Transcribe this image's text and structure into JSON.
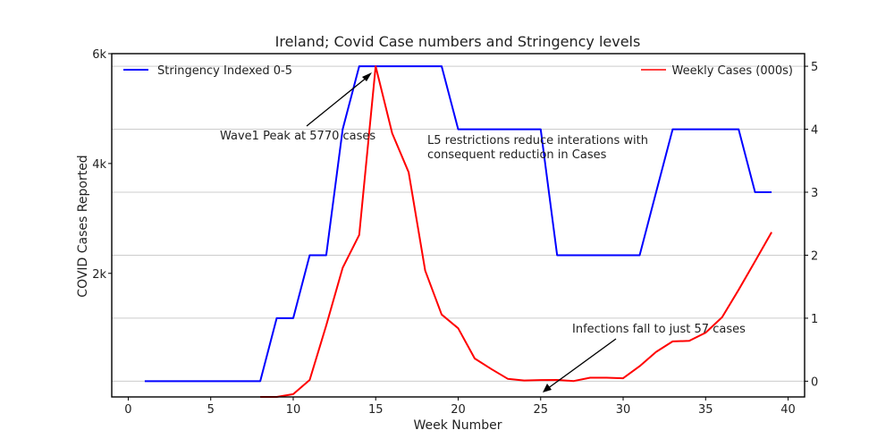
{
  "chart_data": {
    "type": "line",
    "title": "Ireland; Covid Case numbers and Stringency levels",
    "xlabel": "Week Number",
    "ylabel_left": "COVID Cases Reported",
    "xlim": [
      -1,
      41
    ],
    "ylim_left": [
      -0.25,
      6
    ],
    "ylim_right": [
      -0.25,
      5.2
    ],
    "grid": "horizontal lines at right-axis ticks",
    "x_ticks": [
      0,
      5,
      10,
      15,
      20,
      25,
      30,
      35,
      40
    ],
    "left_ticks": [
      {
        "value": 2,
        "label": "2k"
      },
      {
        "value": 4,
        "label": "4k"
      },
      {
        "value": 6,
        "label": "6k"
      }
    ],
    "right_ticks": [
      0,
      1,
      2,
      3,
      4,
      5
    ],
    "series": [
      {
        "name": "Stringency Indexed 0-5",
        "axis": "right",
        "color": "#0000ff",
        "x": [
          1,
          2,
          3,
          4,
          5,
          6,
          7,
          8,
          9,
          10,
          11,
          12,
          13,
          14,
          15,
          16,
          17,
          18,
          19,
          20,
          21,
          22,
          23,
          24,
          25,
          26,
          27,
          28,
          29,
          30,
          31,
          32,
          33,
          34,
          35,
          36,
          37,
          38,
          39
        ],
        "values": [
          0,
          0,
          0,
          0,
          0,
          0,
          0,
          0,
          1,
          1,
          2,
          2,
          4,
          5,
          5,
          5,
          5,
          5,
          5,
          4,
          4,
          4,
          4,
          4,
          4,
          2,
          2,
          2,
          2,
          2,
          2,
          3,
          4,
          4,
          4,
          4,
          4,
          3,
          3
        ]
      },
      {
        "name": "Weekly Cases (000s)",
        "axis": "left",
        "color": "#ff0000",
        "x": [
          8,
          9,
          10,
          11,
          12,
          13,
          14,
          15,
          16,
          17,
          18,
          19,
          20,
          21,
          22,
          23,
          24,
          25,
          26,
          27,
          28,
          29,
          30,
          31,
          32,
          33,
          34,
          35,
          36,
          37,
          38,
          39
        ],
        "values": [
          -0.25,
          -0.25,
          -0.2,
          0.06,
          1.05,
          2.1,
          2.7,
          5.77,
          4.55,
          3.84,
          2.05,
          1.25,
          1.0,
          0.45,
          0.26,
          0.08,
          0.05,
          0.057,
          0.06,
          0.04,
          0.1,
          0.1,
          0.09,
          0.31,
          0.57,
          0.76,
          0.77,
          0.92,
          1.2,
          1.7,
          2.22,
          2.75
        ]
      }
    ],
    "legend": [
      {
        "label": "Stringency Indexed 0-5",
        "placement": "top-left"
      },
      {
        "label": "Weekly Cases (000s)",
        "placement": "top-right"
      }
    ],
    "annotations": [
      {
        "text": "Wave1 Peak at 5770 cases",
        "target_x": 15,
        "target_y": 5.77,
        "axis": "left"
      },
      {
        "text": "L5 restrictions reduce interations with",
        "text2": "consequent reduction in Cases"
      },
      {
        "text": "Infections fall to just 57 cases",
        "target_x": 25,
        "target_y": 0.057,
        "axis": "left"
      }
    ]
  }
}
